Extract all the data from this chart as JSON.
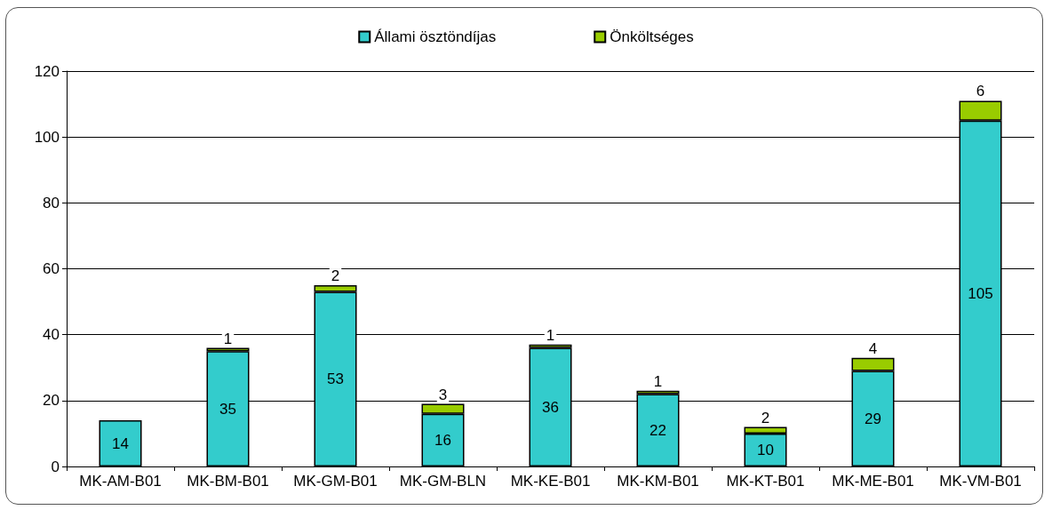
{
  "chart_data": {
    "type": "bar",
    "stacked": true,
    "categories": [
      "MK-AM-B01",
      "MK-BM-B01",
      "MK-GM-B01",
      "MK-GM-BLN",
      "MK-KE-B01",
      "MK-KM-B01",
      "MK-KT-B01",
      "MK-ME-B01",
      "MK-VM-B01"
    ],
    "series": [
      {
        "name": "Állami ösztöndíjas",
        "color": "#33cccc",
        "values": [
          14,
          35,
          53,
          16,
          36,
          22,
          10,
          29,
          105
        ]
      },
      {
        "name": "Önköltséges",
        "color": "#99cc00",
        "values": [
          null,
          1,
          2,
          3,
          1,
          1,
          2,
          4,
          6
        ]
      }
    ],
    "ylim": [
      0,
      120
    ],
    "yticks": [
      0,
      20,
      40,
      60,
      80,
      100,
      120
    ],
    "grid": "y",
    "legend": "top",
    "data_labels": true
  }
}
